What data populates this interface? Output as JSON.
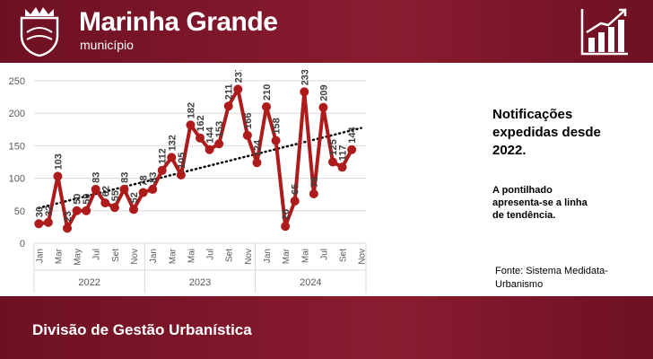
{
  "header": {
    "title": "Marinha Grande",
    "subtitle": "município"
  },
  "footer": {
    "title": "Divisão de Gestão Urbanística"
  },
  "chart_data": {
    "type": "line",
    "title": "Notificações expedidas desde 2022.",
    "annotation": "A pontilhado apresenta-se a linha de tendência.",
    "source": "Fonte: Sistema Medidata-Urbanismo",
    "categories": [
      "Jan",
      null,
      "Mar",
      null,
      "May",
      null,
      "Jul",
      null,
      "Set",
      null,
      "Nov",
      null,
      "Jan",
      null,
      "Mar",
      null,
      "Mai",
      null,
      "Jul",
      null,
      "Set",
      null,
      "Nov",
      null,
      "Jan",
      null,
      "Mar",
      null,
      "Mai",
      null,
      "Jul",
      null,
      "Set",
      null,
      "Nov"
    ],
    "years": [
      "2022",
      "2023",
      "2024"
    ],
    "values": [
      30,
      32,
      103,
      23,
      50,
      50,
      83,
      62,
      55,
      83,
      52,
      78,
      83,
      112,
      132,
      105,
      182,
      162,
      144,
      153,
      211,
      237,
      166,
      124,
      210,
      158,
      26,
      65,
      233,
      76,
      209,
      125,
      117,
      144,
      null
    ],
    "color": "#ae1b1b",
    "trendline": true,
    "ylim": [
      0,
      250
    ],
    "yticks": [
      0,
      50,
      100,
      150,
      200,
      250
    ],
    "grid": true
  }
}
